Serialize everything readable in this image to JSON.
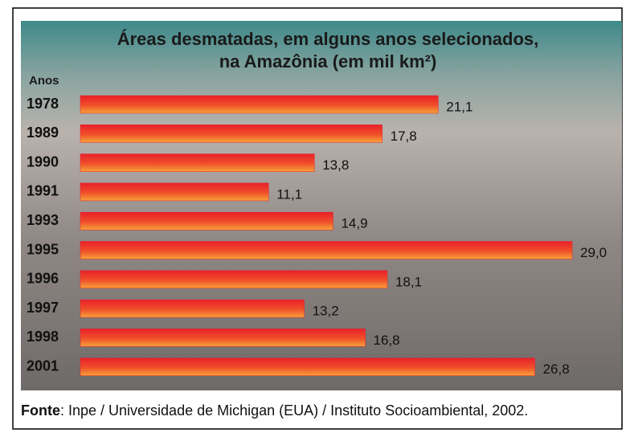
{
  "chart_data": {
    "type": "bar",
    "orientation": "horizontal",
    "title": [
      "Áreas desmatadas, em alguns anos selecionados,",
      "na Amazônia (em mil km²)"
    ],
    "y_label": "Anos",
    "categories": [
      "1978",
      "1989",
      "1990",
      "1991",
      "1993",
      "1995",
      "1996",
      "1997",
      "1998",
      "2001"
    ],
    "values": [
      21.1,
      17.8,
      13.8,
      11.1,
      14.9,
      29.0,
      18.1,
      13.2,
      16.8,
      26.8
    ],
    "value_labels": [
      "21,1",
      "17,8",
      "13,8",
      "11,1",
      "14,9",
      "29,0",
      "18,1",
      "13,2",
      "16,8",
      "26,8"
    ],
    "color": "#e8202a",
    "source": [
      "Fonte",
      ": Inpe / Universidade de Michigan (EUA) / Instituto Socioambiental, 2002."
    ]
  }
}
